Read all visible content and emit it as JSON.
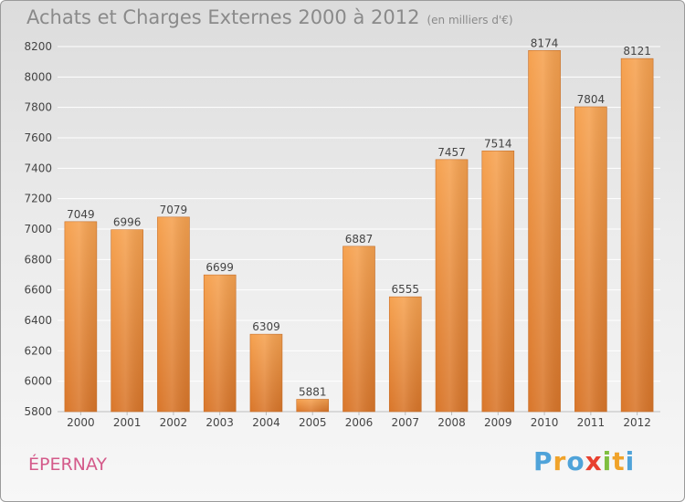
{
  "title": "Achats et Charges Externes 2000 à 2012",
  "subtitle": "(en milliers d'€)",
  "location": "ÉPERNAY",
  "brand": {
    "letters": [
      "P",
      "r",
      "o",
      "x",
      "i",
      "t",
      "i"
    ],
    "colors": [
      "#4fa3d9",
      "#f0a32a",
      "#4fa3d9",
      "#e8402f",
      "#7fbf3f",
      "#f0a32a",
      "#4fa3d9"
    ]
  },
  "colors": {
    "bar_light": "#f6a250",
    "bar_dark": "#d9762a",
    "title": "#8a8a8a",
    "location": "#d45a8a",
    "grid": "#ffffff"
  },
  "chart_data": {
    "type": "bar",
    "categories": [
      "2000",
      "2001",
      "2002",
      "2003",
      "2004",
      "2005",
      "2006",
      "2007",
      "2008",
      "2009",
      "2010",
      "2011",
      "2012"
    ],
    "values": [
      7049,
      6996,
      7079,
      6699,
      6309,
      5881,
      6887,
      6555,
      7457,
      7514,
      8174,
      7804,
      8121
    ],
    "yticks": [
      5800,
      6000,
      6200,
      6400,
      6600,
      6800,
      7000,
      7200,
      7400,
      7600,
      7800,
      8000,
      8200
    ],
    "ylim": [
      5800,
      8200
    ],
    "grid": true
  }
}
